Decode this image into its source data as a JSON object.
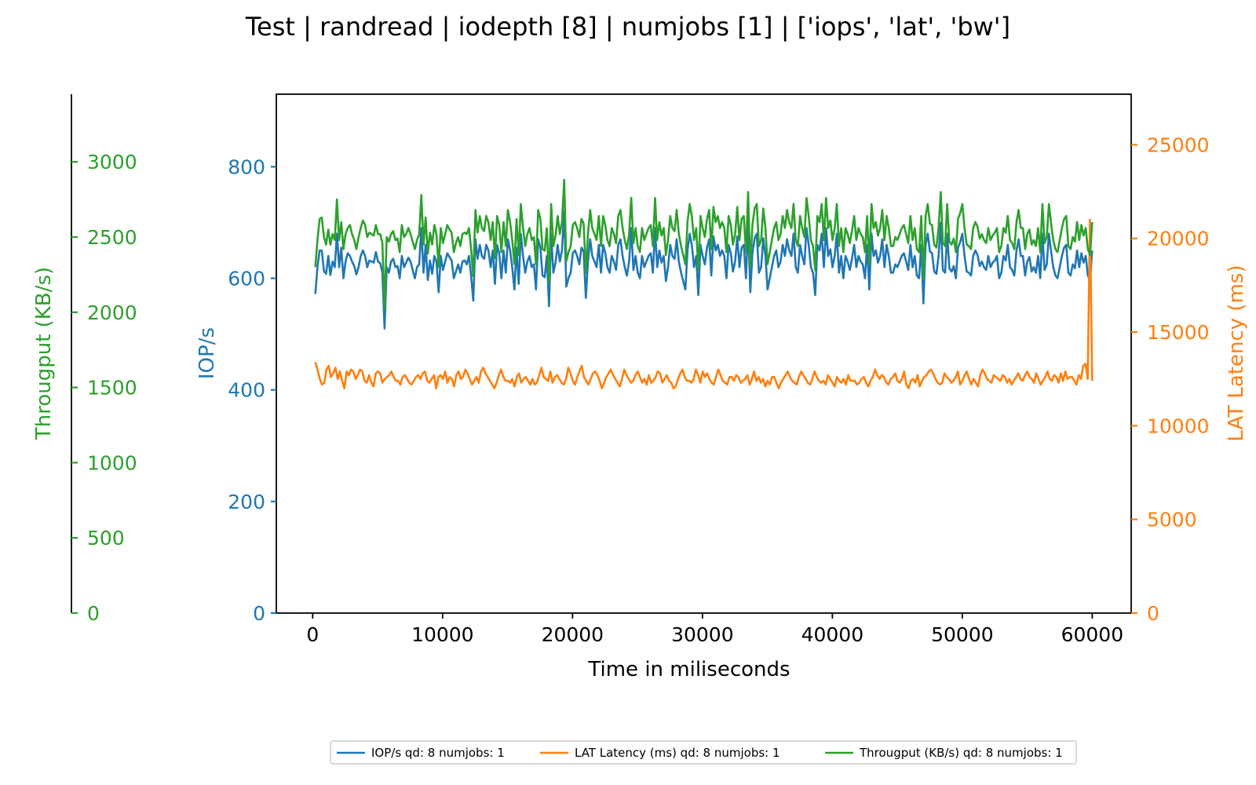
{
  "colors": {
    "iops": "#1f77b4",
    "lat": "#ff7f0e",
    "bw": "#2ca02c",
    "axis": "#000000",
    "background": "#ffffff"
  },
  "chart_data": {
    "type": "line",
    "title": "Test | randread | iodepth [8] | numjobs [1] | ['iops', 'lat', 'bw']",
    "xlabel": "Time in miliseconds",
    "xlim": [
      -2800,
      63000
    ],
    "x_ticks": [
      0,
      10000,
      20000,
      30000,
      40000,
      50000,
      60000
    ],
    "x_tick_labels": [
      "0",
      "10000",
      "20000",
      "30000",
      "40000",
      "50000",
      "60000"
    ],
    "grid": false,
    "legend_position": "bottom-center",
    "axes": {
      "iops": {
        "label": "IOP/s",
        "side": "left",
        "ylim": [
          0,
          930
        ],
        "ticks": [
          0,
          200,
          400,
          600,
          800
        ],
        "tick_labels": [
          "0",
          "200",
          "400",
          "600",
          "800"
        ]
      },
      "lat": {
        "label": "LAT Latency (ms)",
        "side": "right",
        "ylim": [
          0,
          27700
        ],
        "ticks": [
          0,
          5000,
          10000,
          15000,
          20000,
          25000
        ],
        "tick_labels": [
          "0",
          "5000",
          "10000",
          "15000",
          "20000",
          "25000"
        ]
      },
      "bw": {
        "label": "Througput (KB/s)",
        "side": "left-outer",
        "ylim": [
          0,
          3450
        ],
        "ticks": [
          0,
          500,
          1000,
          1500,
          2000,
          2500,
          3000
        ],
        "tick_labels": [
          "0",
          "500",
          "1000",
          "1500",
          "2000",
          "2500",
          "3000"
        ]
      }
    },
    "series": [
      {
        "name": "IOP/s qd: 8 numjobs: 1",
        "axis": "iops",
        "color": "#1f77b4",
        "x_start": 200,
        "x_end": 60000,
        "values": [
          572,
          620,
          650,
          650,
          613,
          608,
          640,
          606,
          630,
          620,
          680,
          620,
          655,
          600,
          630,
          645,
          640,
          630,
          622,
          607,
          620,
          640,
          650,
          640,
          620,
          632,
          630,
          628,
          647,
          630,
          627,
          610,
          510,
          620,
          610,
          630,
          635,
          620,
          622,
          600,
          640,
          620,
          628,
          637,
          630,
          615,
          600,
          620,
          625,
          690,
          610,
          660,
          597,
          632,
          608,
          640,
          630,
          575,
          640,
          615,
          630,
          645,
          638,
          632,
          600,
          612,
          625,
          610,
          630,
          632,
          625,
          640,
          605,
          560,
          670,
          635,
          660,
          640,
          635,
          660,
          650,
          620,
          650,
          590,
          660,
          645,
          600,
          650,
          610,
          670,
          650,
          620,
          580,
          655,
          590,
          680,
          640,
          610,
          630,
          640,
          620,
          625,
          580,
          670,
          655,
          605,
          602,
          640,
          550,
          680,
          610,
          628,
          660,
          630,
          650,
          720,
          585,
          600,
          610,
          645,
          650,
          640,
          625,
          655,
          648,
          565,
          630,
          670,
          640,
          630,
          620,
          660,
          610,
          660,
          645,
          620,
          610,
          640,
          630,
          615,
          660,
          670,
          640,
          620,
          605,
          630,
          690,
          615,
          640,
          610,
          600,
          640,
          620,
          630,
          640,
          645,
          610,
          690,
          620,
          650,
          628,
          640,
          595,
          620,
          660,
          640,
          635,
          670,
          630,
          610,
          595,
          580,
          650,
          680,
          660,
          620,
          640,
          570,
          660,
          640,
          625,
          655,
          670,
          605,
          675,
          650,
          660,
          640,
          650,
          640,
          600,
          660,
          645,
          612,
          630,
          675,
          620,
          655,
          660,
          600,
          700,
          575,
          645,
          672,
          680,
          610,
          620,
          672,
          640,
          580,
          600,
          620,
          640,
          650,
          620,
          630,
          660,
          640,
          670,
          650,
          640,
          680,
          620,
          610,
          660,
          640,
          625,
          690,
          660,
          620,
          610,
          570,
          660,
          650,
          680,
          620,
          690,
          640,
          652,
          620,
          640,
          680,
          610,
          640,
          600,
          640,
          630,
          615,
          635,
          660,
          620,
          640,
          630,
          625,
          600,
          660,
          580,
          680,
          640,
          650,
          628,
          640,
          670,
          620,
          660,
          640,
          610,
          610,
          625,
          620,
          630,
          640,
          645,
          630,
          615,
          660,
          620,
          640,
          605,
          600,
          660,
          555,
          660,
          680,
          648,
          645,
          612,
          608,
          640,
          700,
          615,
          610,
          680,
          618,
          612,
          622,
          600,
          655,
          665,
          680,
          640,
          612,
          610,
          605,
          640,
          650,
          642,
          622,
          630,
          620,
          615,
          640,
          620,
          628,
          632,
          640,
          600,
          610,
          640,
          632,
          660,
          620,
          615,
          605,
          650,
          670,
          640,
          640,
          605,
          630,
          638,
          612,
          620,
          610,
          640,
          600,
          680,
          615,
          625,
          680,
          648,
          620,
          605,
          600,
          620,
          640,
          655,
          660,
          610,
          605,
          625,
          618,
          650,
          620,
          645,
          628,
          640,
          605,
          596,
          650
        ]
      },
      {
        "name": "LAT Latency (ms)",
        "legend_label": "LAT Latency (ms) qd: 8 numjobs: 1",
        "axis": "lat",
        "color": "#ff7f0e",
        "x_start": 200,
        "x_end": 60000,
        "values": [
          13400,
          13000,
          12500,
          12200,
          12300,
          13000,
          13200,
          12600,
          12800,
          13100,
          12500,
          12900,
          12400,
          12000,
          12900,
          12700,
          13000,
          12900,
          12500,
          12700,
          13000,
          12900,
          12400,
          12300,
          12700,
          12300,
          12100,
          12800,
          12900,
          12800,
          12300,
          12500,
          12600,
          12700,
          12900,
          12600,
          12400,
          12400,
          12200,
          12600,
          12700,
          12500,
          12300,
          12200,
          12400,
          12600,
          12700,
          12500,
          12800,
          12900,
          12400,
          12300,
          12500,
          12700,
          12000,
          12600,
          12700,
          12500,
          12900,
          12300,
          12600,
          12500,
          12100,
          12700,
          12900,
          12500,
          12600,
          13000,
          12800,
          12500,
          12200,
          12400,
          12600,
          12300,
          12900,
          13100,
          12800,
          12600,
          12400,
          12200,
          12000,
          12300,
          12700,
          13000,
          12600,
          12400,
          12400,
          12300,
          12500,
          12100,
          12600,
          12800,
          12300,
          12500,
          12600,
          12400,
          12200,
          12500,
          12200,
          12300,
          12700,
          13100,
          12600,
          12500,
          12400,
          12900,
          12300,
          12600,
          12700,
          12500,
          12300,
          12200,
          12500,
          13100,
          12800,
          12400,
          12200,
          12600,
          12900,
          13200,
          12600,
          12400,
          12200,
          12500,
          12800,
          12900,
          12700,
          12400,
          12000,
          12300,
          12600,
          12800,
          13000,
          12700,
          12500,
          12300,
          12100,
          12500,
          13000,
          12700,
          12500,
          12300,
          12400,
          12700,
          12900,
          12600,
          12300,
          12500,
          12200,
          12700,
          12300,
          12400,
          12600,
          12900,
          12800,
          12300,
          12500,
          12700,
          12400,
          12300,
          12000,
          12100,
          12500,
          12800,
          13000,
          12600,
          12400,
          12400,
          12300,
          12500,
          13000,
          12700,
          12300,
          12900,
          12600,
          12800,
          12500,
          12300,
          12200,
          12600,
          13000,
          12700,
          12400,
          12300,
          12200,
          12600,
          12600,
          12400,
          12700,
          12600,
          12300,
          12400,
          12500,
          12700,
          12200,
          12500,
          12900,
          12400,
          12600,
          12300,
          12500,
          12100,
          12400,
          12200,
          12600,
          12600,
          12300,
          12000,
          12300,
          12500,
          12700,
          12900,
          12600,
          12400,
          12300,
          12200,
          12600,
          12900,
          12700,
          12500,
          12300,
          12200,
          12500,
          12900,
          12600,
          12400,
          12300,
          12400,
          12200,
          12700,
          12500,
          12300,
          12100,
          12600,
          12400,
          12300,
          12500,
          12200,
          12700,
          12400,
          12400,
          12400,
          12200,
          12300,
          12500,
          12600,
          12300,
          12100,
          12400,
          12600,
          13000,
          12700,
          12500,
          12700,
          12600,
          12300,
          12200,
          12500,
          12600,
          12800,
          12400,
          12300,
          12500,
          12900,
          12200,
          12000,
          12400,
          12500,
          12300,
          12700,
          12100,
          12400,
          12600,
          12700,
          12900,
          13000,
          12800,
          12500,
          12300,
          12200,
          12300,
          12800,
          12600,
          12500,
          12300,
          12400,
          12600,
          12900,
          12200,
          12400,
          12700,
          12900,
          12500,
          12200,
          12500,
          12300,
          12100,
          12700,
          13000,
          12800,
          12500,
          12400,
          12300,
          12700,
          12600,
          12500,
          12400,
          12700,
          12600,
          12300,
          12500,
          12200,
          12400,
          12600,
          12800,
          12500,
          12400,
          12700,
          12900,
          12600,
          12500,
          12300,
          12800,
          12500,
          12200,
          12400,
          12600,
          12900,
          12500,
          12400,
          12700,
          12600,
          12300,
          12800,
          12400,
          12900,
          12500,
          12600,
          12600,
          12400,
          12200,
          12700,
          12500,
          13200,
          13300,
          12500,
          21000,
          12400
        ]
      },
      {
        "name": "Througput (KB/s) qd: 8 numjobs: 1",
        "axis": "bw",
        "color": "#2ca02c",
        "x_start": 200,
        "x_end": 60000,
        "values": [
          2300,
          2480,
          2620,
          2630,
          2500,
          2450,
          2550,
          2450,
          2520,
          2480,
          2750,
          2480,
          2600,
          2420,
          2520,
          2560,
          2580,
          2520,
          2480,
          2420,
          2500,
          2560,
          2610,
          2580,
          2500,
          2530,
          2520,
          2510,
          2580,
          2520,
          2520,
          2460,
          2020,
          2500,
          2470,
          2520,
          2540,
          2480,
          2490,
          2400,
          2580,
          2500,
          2520,
          2560,
          2520,
          2470,
          2420,
          2480,
          2520,
          2780,
          2450,
          2630,
          2390,
          2530,
          2450,
          2580,
          2520,
          2300,
          2560,
          2460,
          2520,
          2580,
          2550,
          2530,
          2400,
          2460,
          2500,
          2440,
          2520,
          2530,
          2520,
          2560,
          2420,
          2240,
          2680,
          2530,
          2640,
          2560,
          2540,
          2640,
          2600,
          2480,
          2600,
          2360,
          2640,
          2580,
          2400,
          2600,
          2440,
          2680,
          2600,
          2480,
          2320,
          2620,
          2380,
          2720,
          2560,
          2440,
          2520,
          2560,
          2480,
          2500,
          2320,
          2680,
          2620,
          2420,
          2410,
          2560,
          2200,
          2720,
          2440,
          2510,
          2640,
          2520,
          2600,
          2880,
          2340,
          2400,
          2440,
          2580,
          2600,
          2560,
          2500,
          2620,
          2590,
          2260,
          2520,
          2680,
          2560,
          2520,
          2480,
          2640,
          2440,
          2640,
          2580,
          2480,
          2440,
          2560,
          2520,
          2460,
          2640,
          2680,
          2560,
          2480,
          2420,
          2520,
          2760,
          2460,
          2560,
          2440,
          2400,
          2560,
          2480,
          2520,
          2560,
          2580,
          2440,
          2760,
          2480,
          2600,
          2510,
          2560,
          2380,
          2480,
          2640,
          2560,
          2540,
          2680,
          2520,
          2440,
          2380,
          2320,
          2600,
          2720,
          2640,
          2480,
          2560,
          2280,
          2640,
          2560,
          2500,
          2620,
          2680,
          2420,
          2700,
          2600,
          2640,
          2560,
          2600,
          2560,
          2400,
          2640,
          2580,
          2450,
          2520,
          2700,
          2480,
          2620,
          2640,
          2400,
          2800,
          2300,
          2580,
          2690,
          2720,
          2440,
          2480,
          2690,
          2560,
          2320,
          2400,
          2480,
          2560,
          2600,
          2480,
          2520,
          2640,
          2560,
          2680,
          2600,
          2560,
          2720,
          2480,
          2440,
          2640,
          2560,
          2500,
          2760,
          2640,
          2480,
          2440,
          2280,
          2640,
          2600,
          2720,
          2480,
          2760,
          2560,
          2610,
          2480,
          2560,
          2720,
          2440,
          2560,
          2400,
          2560,
          2520,
          2460,
          2540,
          2640,
          2480,
          2560,
          2520,
          2500,
          2400,
          2640,
          2320,
          2720,
          2560,
          2600,
          2510,
          2560,
          2680,
          2480,
          2640,
          2560,
          2440,
          2440,
          2500,
          2480,
          2520,
          2560,
          2580,
          2520,
          2460,
          2640,
          2480,
          2560,
          2420,
          2400,
          2640,
          2220,
          2640,
          2720,
          2590,
          2580,
          2450,
          2430,
          2560,
          2800,
          2460,
          2440,
          2720,
          2470,
          2450,
          2490,
          2400,
          2620,
          2660,
          2720,
          2560,
          2450,
          2440,
          2420,
          2560,
          2600,
          2570,
          2490,
          2520,
          2480,
          2460,
          2560,
          2480,
          2510,
          2530,
          2560,
          2400,
          2440,
          2560,
          2530,
          2640,
          2480,
          2460,
          2420,
          2600,
          2680,
          2560,
          2560,
          2420,
          2520,
          2550,
          2450,
          2480,
          2440,
          2560,
          2400,
          2720,
          2460,
          2500,
          2720,
          2590,
          2480,
          2420,
          2400,
          2480,
          2560,
          2620,
          2640,
          2440,
          2420,
          2500,
          2470,
          2600,
          2480,
          2580,
          2510,
          2560,
          2420,
          2380,
          2600
        ]
      }
    ]
  }
}
